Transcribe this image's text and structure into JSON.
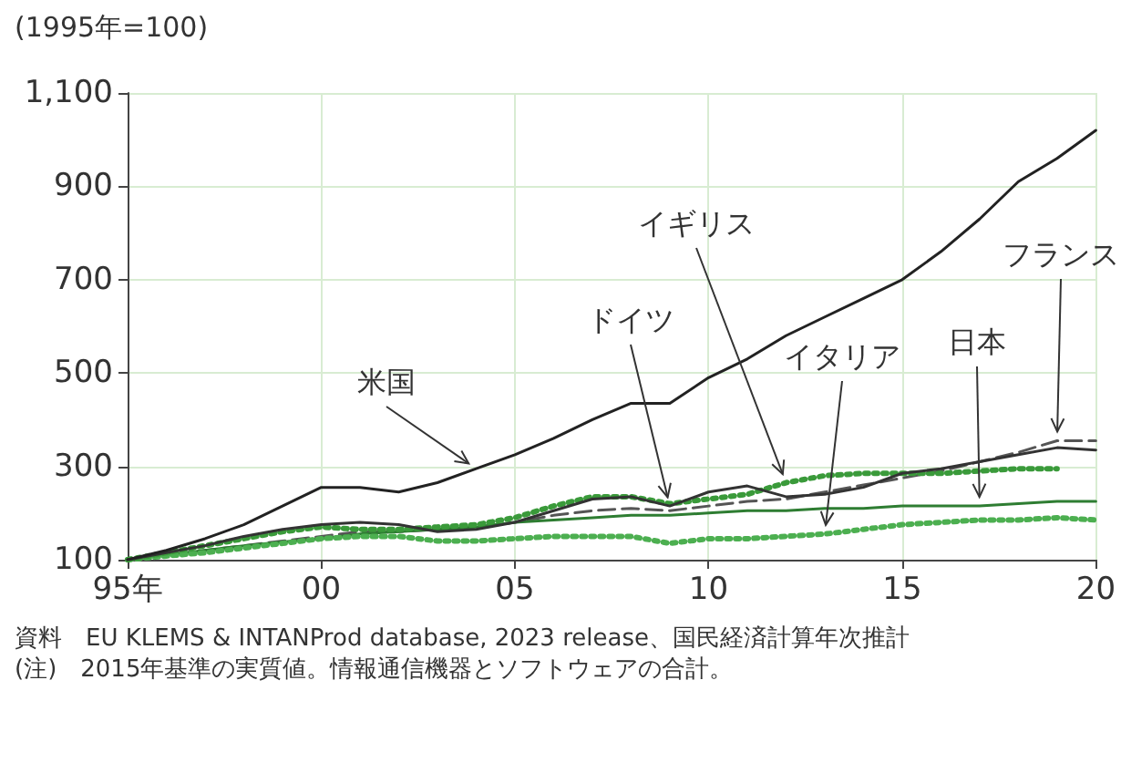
{
  "chart_data": {
    "type": "line",
    "ylabel": "(1995年=100)",
    "x": [
      "1995",
      "1996",
      "1997",
      "1998",
      "1999",
      "2000",
      "2001",
      "2002",
      "2003",
      "2004",
      "2005",
      "2006",
      "2007",
      "2008",
      "2009",
      "2010",
      "2011",
      "2012",
      "2013",
      "2014",
      "2015",
      "2016",
      "2017",
      "2018",
      "2019",
      "2020"
    ],
    "xlim": [
      "1995",
      "2020"
    ],
    "xticks": [
      {
        "value": "1995",
        "label": "95年"
      },
      {
        "value": "2000",
        "label": "00"
      },
      {
        "value": "2005",
        "label": "05"
      },
      {
        "value": "2010",
        "label": "10"
      },
      {
        "value": "2015",
        "label": "15"
      },
      {
        "value": "2020",
        "label": "20"
      }
    ],
    "ylim": [
      100,
      1100
    ],
    "yticks": [
      {
        "value": 100,
        "label": "100"
      },
      {
        "value": 300,
        "label": "300"
      },
      {
        "value": 500,
        "label": "500"
      },
      {
        "value": 700,
        "label": "700"
      },
      {
        "value": 900,
        "label": "900"
      },
      {
        "value": 1100,
        "label": "1,100"
      }
    ],
    "grid": true,
    "legend": false,
    "marker": "none",
    "series": [
      {
        "name": "米国",
        "color": "#222222",
        "line_style": "solid",
        "values": [
          100,
          120,
          145,
          175,
          215,
          255,
          255,
          245,
          265,
          295,
          325,
          360,
          400,
          435,
          435,
          490,
          530,
          580,
          620,
          660,
          700,
          760,
          830,
          910,
          960,
          1020
        ]
      },
      {
        "name": "ドイツ",
        "color": "#333333",
        "line_style": "solid",
        "values": [
          100,
          115,
          130,
          150,
          165,
          175,
          180,
          175,
          160,
          165,
          180,
          205,
          230,
          235,
          215,
          245,
          258,
          235,
          240,
          255,
          285,
          295,
          310,
          325,
          340,
          335
        ]
      },
      {
        "name": "イギリス",
        "color": "#3a9a3a",
        "line_style": "dotted",
        "values": [
          100,
          115,
          130,
          145,
          160,
          170,
          165,
          165,
          170,
          175,
          190,
          215,
          235,
          235,
          220,
          230,
          240,
          265,
          280,
          285,
          285,
          285,
          290,
          295,
          295,
          null
        ]
      },
      {
        "name": "イタリア",
        "color": "#4caf50",
        "line_style": "dotted",
        "values": [
          100,
          108,
          115,
          125,
          135,
          145,
          150,
          150,
          140,
          140,
          145,
          150,
          150,
          150,
          135,
          145,
          145,
          150,
          155,
          165,
          175,
          180,
          185,
          185,
          190,
          185
        ]
      },
      {
        "name": "日本",
        "color": "#2e7d32",
        "line_style": "solid",
        "values": [
          100,
          110,
          120,
          130,
          138,
          145,
          155,
          160,
          165,
          170,
          180,
          185,
          190,
          195,
          195,
          200,
          205,
          205,
          210,
          210,
          215,
          215,
          215,
          220,
          225,
          225
        ]
      },
      {
        "name": "フランス",
        "color": "#555555",
        "line_style": "dashed",
        "values": [
          100,
          110,
          120,
          130,
          140,
          150,
          160,
          160,
          165,
          170,
          180,
          195,
          205,
          210,
          205,
          215,
          225,
          230,
          245,
          260,
          275,
          290,
          310,
          330,
          355,
          355
        ]
      }
    ],
    "annotations": [
      "資料　EU KLEMS & INTANProd database, 2023 release、国民経済計算年次推計",
      "(注)　2015年基準の実質値。情報通信機器とソフトウェアの合計。"
    ]
  }
}
